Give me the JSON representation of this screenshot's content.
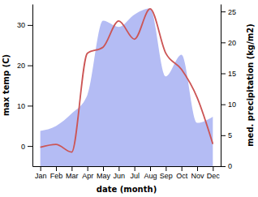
{
  "chart_data": {
    "type": "line",
    "xlabel": "date (month)",
    "ylabel": "max temp (C)",
    "y2label": "med. precipitation (kg/m2)",
    "categories": [
      "Jan",
      "Feb",
      "Mar",
      "Apr",
      "May",
      "Jun",
      "Jul",
      "Aug",
      "Sep",
      "Oct",
      "Nov",
      "Dec"
    ],
    "series": [
      {
        "type": "area",
        "axis": "y2",
        "color": "#b4bcf4",
        "values": [
          5.7,
          6.5,
          8.5,
          11.5,
          23.5,
          22.5,
          24.5,
          25.5,
          14.5,
          18,
          7,
          8
        ]
      },
      {
        "type": "line",
        "color": "#cc5555",
        "values": [
          -0.3,
          0.4,
          -1.5,
          23,
          24.5,
          31,
          26.5,
          34,
          23,
          19,
          12,
          0.5
        ]
      }
    ],
    "ylim": [
      -5,
      35.2
    ],
    "yticks": [
      0,
      10,
      20,
      30
    ],
    "y2lim": [
      0,
      26.2
    ],
    "y2ticks": [
      0,
      5,
      10,
      15,
      20,
      25
    ],
    "grid": false
  }
}
